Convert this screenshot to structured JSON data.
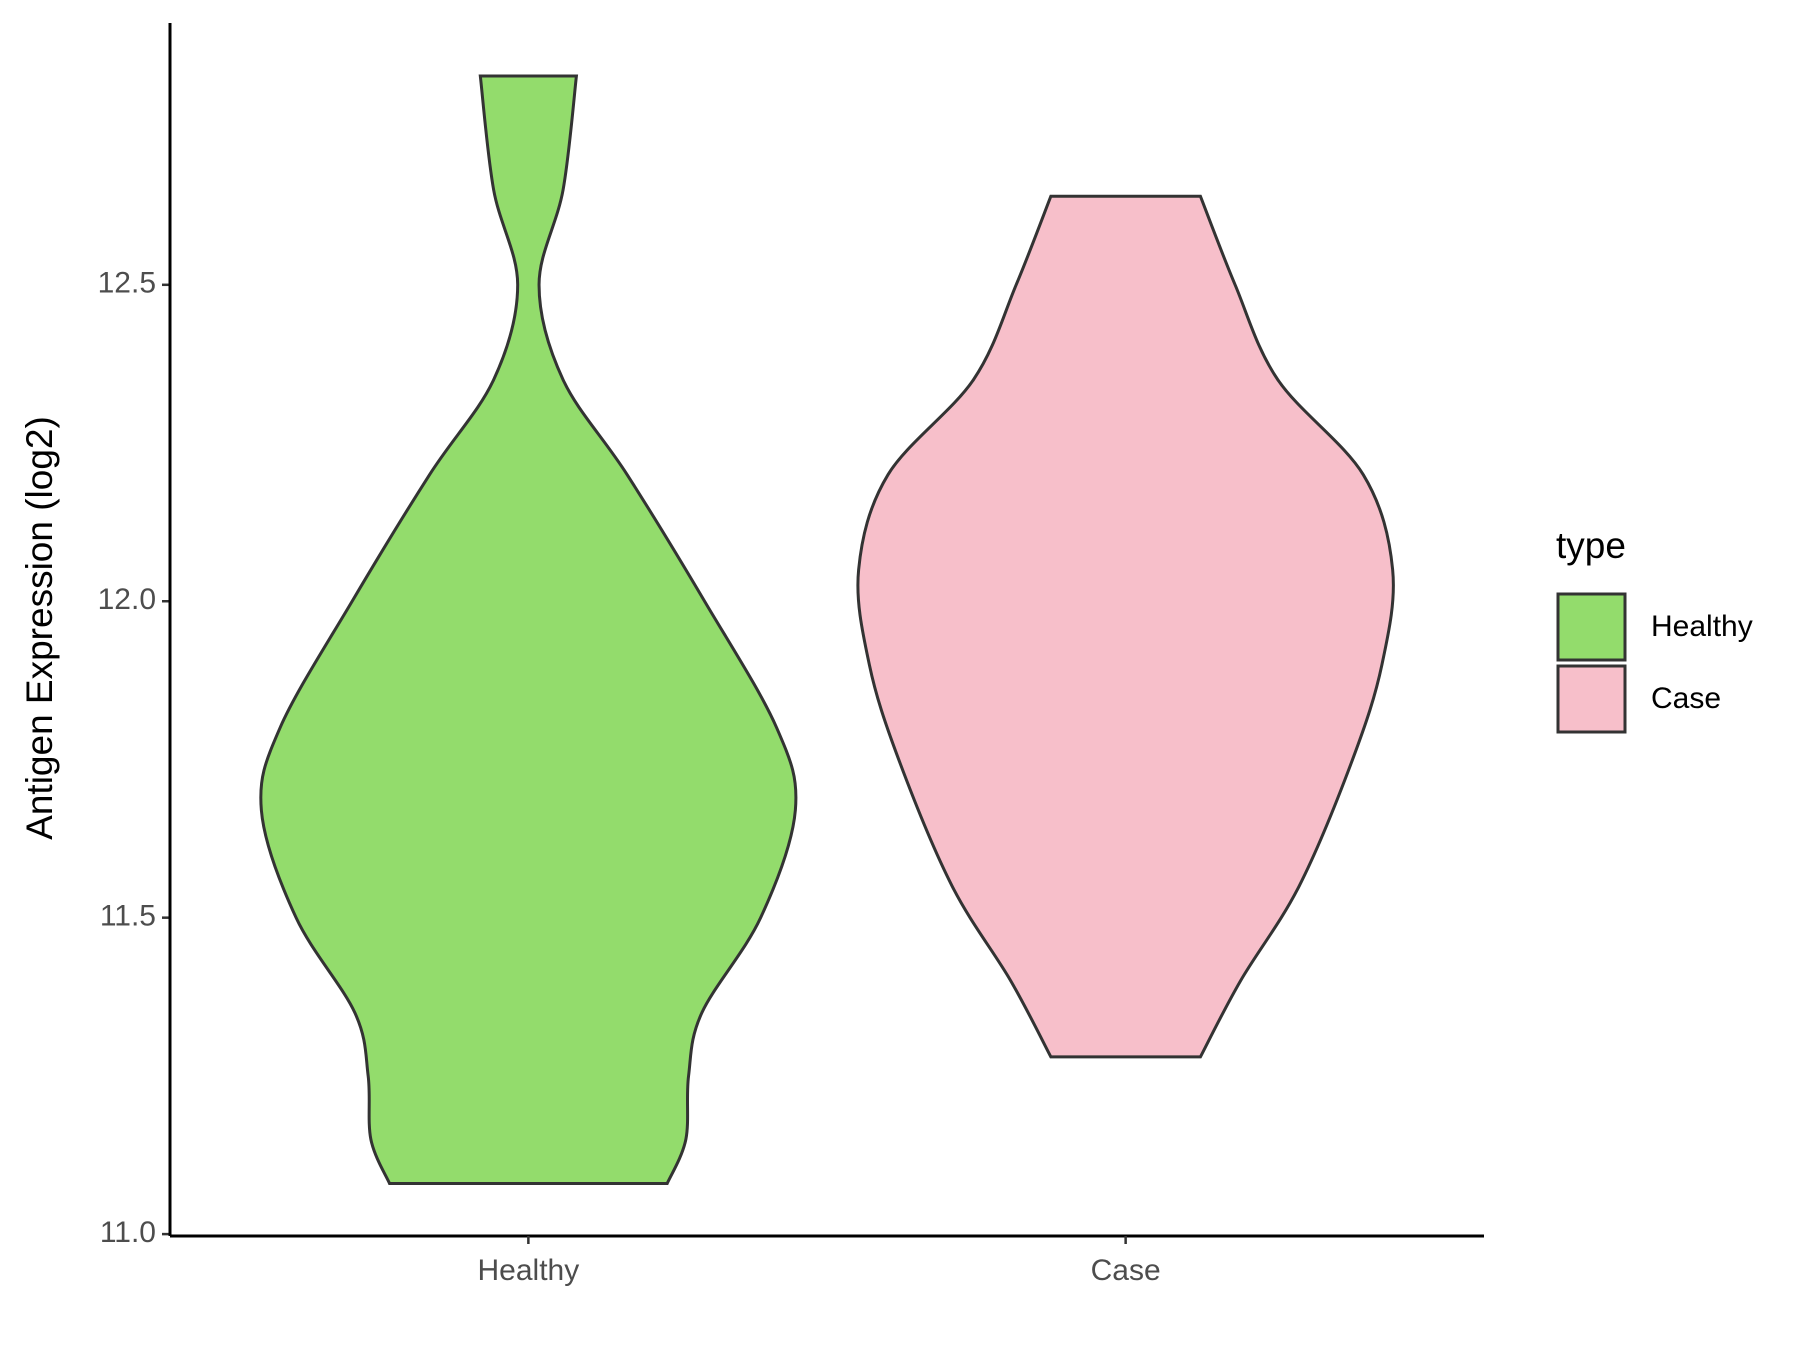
{
  "chart_data": {
    "type": "violin",
    "ylabel": "Antigen Expression (log2)",
    "legend_title": "type",
    "categories": [
      "Healthy",
      "Case"
    ],
    "series": [
      {
        "name": "Healthy",
        "color": "#93dc6c",
        "y": [
          11.08,
          11.15,
          11.25,
          11.35,
          11.5,
          11.67,
          11.8,
          12.0,
          12.2,
          12.35,
          12.5,
          12.65,
          12.83
        ],
        "widths": [
          0.52,
          0.59,
          0.6,
          0.65,
          0.87,
          1.0,
          0.93,
          0.66,
          0.37,
          0.13,
          0.04,
          0.13,
          0.18
        ]
      },
      {
        "name": "Case",
        "color": "#f7bfca",
        "y": [
          11.28,
          11.4,
          11.55,
          11.75,
          11.9,
          12.05,
          12.2,
          12.35,
          12.5,
          12.64
        ],
        "widths": [
          0.28,
          0.43,
          0.65,
          0.85,
          0.96,
          1.0,
          0.89,
          0.57,
          0.41,
          0.28
        ]
      }
    ],
    "ylim": [
      10.997,
      12.92
    ],
    "yticks": [
      {
        "value": 11,
        "label": "11.0"
      },
      {
        "value": 11.5,
        "label": "11.5"
      },
      {
        "value": 12,
        "label": "12.0"
      },
      {
        "value": 12.5,
        "label": "12.5"
      }
    ]
  }
}
